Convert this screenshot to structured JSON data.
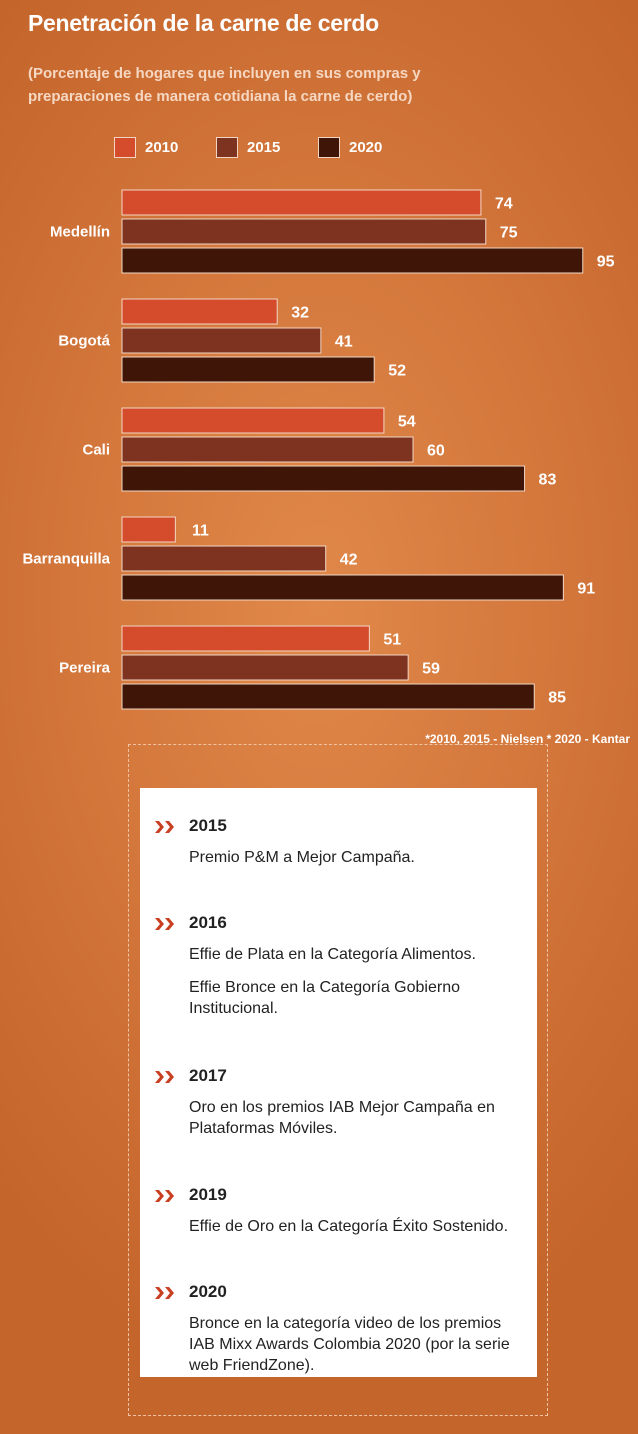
{
  "title": "Penetración de la carne de cerdo",
  "subtitle": "(Porcentaje de hogares que incluyen en sus compras y preparaciones de manera cotidiana la carne de cerdo)",
  "legend": [
    {
      "label": "2010",
      "color": "#d44c2c"
    },
    {
      "label": "2015",
      "color": "#7e3220"
    },
    {
      "label": "2020",
      "color": "#3f1508"
    }
  ],
  "chart_data": {
    "type": "bar",
    "orientation": "horizontal",
    "categories": [
      "Medellín",
      "Bogotá",
      "Cali",
      "Barranquilla",
      "Pereira"
    ],
    "series": [
      {
        "name": "2010",
        "values": [
          74,
          32,
          54,
          11,
          51
        ],
        "color": "#d44c2c"
      },
      {
        "name": "2015",
        "values": [
          75,
          41,
          60,
          42,
          59
        ],
        "color": "#7e3220"
      },
      {
        "name": "2020",
        "values": [
          95,
          52,
          83,
          91,
          85
        ],
        "color": "#3f1508"
      }
    ],
    "title": "Penetración de la carne de cerdo",
    "xlim": [
      0,
      100
    ],
    "grid": false,
    "legend_position": "top-left",
    "data_labels": true
  },
  "source": "*2010, 2015 - Nielsen * 2020 - Kantar",
  "awards": [
    {
      "year": "2015",
      "lines": [
        "Premio P&M a Mejor Campaña."
      ]
    },
    {
      "year": "2016",
      "lines": [
        "Effie de Plata en la Categoría Alimentos.",
        "Effie Bronce en la Categoría Gobierno Institucional."
      ]
    },
    {
      "year": "2017",
      "lines": [
        "Oro en los premios IAB Mejor Campaña en Plataformas Móviles."
      ]
    },
    {
      "year": "2019",
      "lines": [
        "Effie de Oro en la Categoría Éxito Sostenido."
      ]
    },
    {
      "year": "2020",
      "lines": [
        "Bronce en la categoría video de los premios IAB Mixx Awards Colombia 2020 (por la serie web FriendZone)."
      ]
    }
  ],
  "accent_color": "#c93f21"
}
